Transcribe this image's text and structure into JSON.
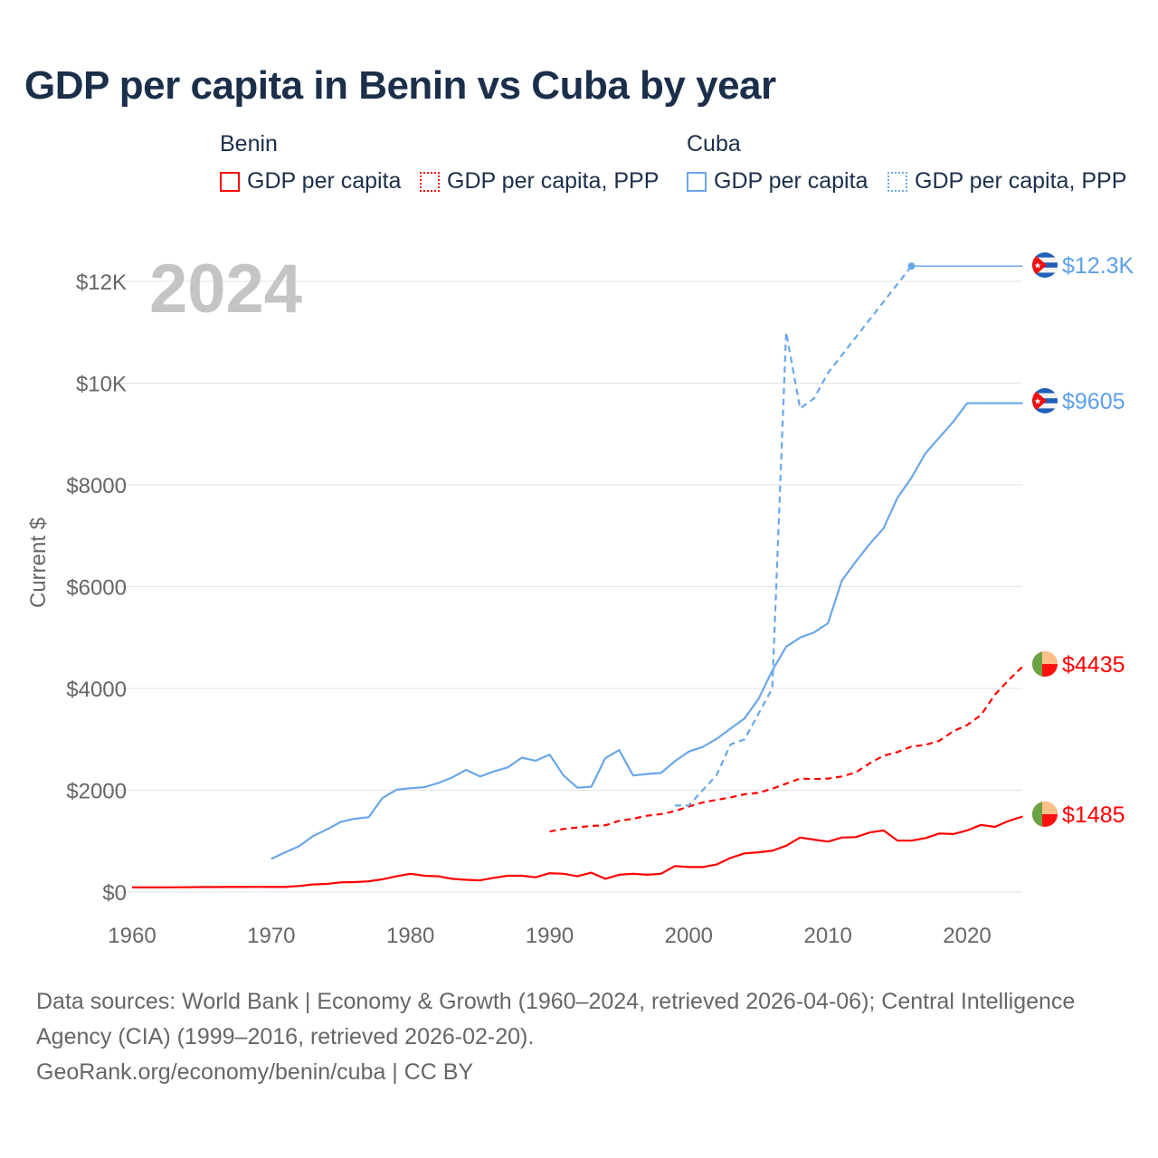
{
  "chart_data": {
    "type": "line",
    "title": "GDP per capita in Benin vs Cuba by year",
    "ylabel": "Current $",
    "xlabel": "",
    "xlim": [
      1960,
      2024
    ],
    "ylim": [
      0,
      12800
    ],
    "x_ticks": [
      1960,
      1970,
      1980,
      1990,
      2000,
      2010,
      2020
    ],
    "x_tick_labels": [
      "1960",
      "1970",
      "1980",
      "1990",
      "2000",
      "2010",
      "2020"
    ],
    "y_ticks": [
      0,
      2000,
      4000,
      6000,
      8000,
      10000,
      12000
    ],
    "y_tick_labels": [
      "$0",
      "$2000",
      "$4000",
      "$6000",
      "$8000",
      "$10K",
      "$12K"
    ],
    "grid": true,
    "year_watermark": "2024",
    "legend": {
      "placement": "top",
      "groups": [
        {
          "name": "Benin",
          "items": [
            "GDP per capita",
            "GDP per capita, PPP"
          ]
        },
        {
          "name": "Cuba",
          "items": [
            "GDP per capita",
            "GDP per capita, PPP"
          ]
        }
      ]
    },
    "series": [
      {
        "name": "Benin GDP per capita",
        "color": "#ff0000",
        "style": "solid",
        "start_year": 1960,
        "values": [
          90,
          90,
          90,
          92,
          95,
          97,
          98,
          99,
          100,
          102,
          100,
          100,
          120,
          150,
          160,
          190,
          195,
          210,
          250,
          310,
          360,
          320,
          310,
          260,
          240,
          230,
          280,
          320,
          320,
          290,
          370,
          360,
          310,
          380,
          260,
          340,
          360,
          340,
          360,
          510,
          490,
          490,
          540,
          670,
          760,
          780,
          810,
          910,
          1070,
          1030,
          990,
          1070,
          1080,
          1170,
          1210,
          1010,
          1010,
          1060,
          1150,
          1140,
          1210,
          1320,
          1280,
          1400,
          1485
        ],
        "end_label": "$1485",
        "flag": "benin-flag-icon"
      },
      {
        "name": "Benin GDP per capita, PPP",
        "color": "#ff0000",
        "style": "dashed",
        "start_year": 1990,
        "values": [
          1190,
          1240,
          1270,
          1300,
          1310,
          1400,
          1440,
          1500,
          1530,
          1590,
          1680,
          1760,
          1810,
          1860,
          1920,
          1950,
          2030,
          2130,
          2230,
          2220,
          2230,
          2270,
          2350,
          2530,
          2680,
          2750,
          2860,
          2890,
          2970,
          3160,
          3280,
          3480,
          3880,
          4170,
          4435
        ],
        "end_label": "$4435",
        "flag": "benin-flag-icon"
      },
      {
        "name": "Cuba GDP per capita",
        "color": "#6aa7e8",
        "style": "solid",
        "start_year": 1970,
        "values": [
          650,
          780,
          900,
          1100,
          1230,
          1380,
          1440,
          1470,
          1850,
          2010,
          2040,
          2060,
          2140,
          2250,
          2400,
          2270,
          2370,
          2450,
          2640,
          2580,
          2700,
          2290,
          2050,
          2070,
          2630,
          2790,
          2290,
          2320,
          2340,
          2570,
          2760,
          2850,
          3010,
          3210,
          3410,
          3790,
          4350,
          4820,
          5000,
          5100,
          5280,
          6120,
          6490,
          6840,
          7150,
          7750,
          8140,
          8620,
          8930,
          9240,
          9605,
          9605,
          9605,
          9605,
          9605
        ],
        "end_label": "$9605",
        "flag": "cuba-flag-icon"
      },
      {
        "name": "Cuba GDP per capita, PPP",
        "color": "#6aa7e8",
        "style": "dashed",
        "start_year": 1999,
        "values": [
          1700,
          1700,
          2000,
          2300,
          2900,
          3000,
          3500,
          4000,
          11000,
          9500,
          9700,
          10200,
          10550,
          10900,
          11250,
          11600,
          11950,
          12300
        ],
        "carried_forward_to": 2024,
        "end_label": "$12.3K",
        "flag": "cuba-flag-icon"
      }
    ]
  },
  "footer": {
    "line1": "Data sources: World Bank | Economy & Growth (1960–2024, retrieved 2026-04-06); Central Intelligence",
    "line2": "Agency (CIA) (1999–2016, retrieved 2026-02-20).",
    "line3": "GeoRank.org/economy/benin/cuba | CC BY"
  }
}
